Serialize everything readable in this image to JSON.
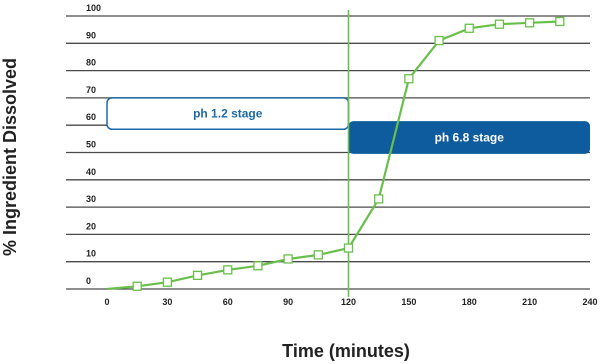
{
  "chart_data": {
    "type": "line",
    "title": "",
    "xlabel": "Time (minutes)",
    "ylabel": "% Ingredient Dissolved",
    "xlim": [
      0,
      240
    ],
    "ylim": [
      0,
      100
    ],
    "x_ticks": [
      0,
      30,
      60,
      90,
      120,
      150,
      180,
      210,
      240
    ],
    "y_ticks": [
      0,
      10,
      20,
      30,
      40,
      50,
      60,
      70,
      80,
      90,
      100
    ],
    "grid": "horizontal",
    "series": [
      {
        "x": [
          0,
          15,
          30,
          45,
          60,
          75,
          90,
          105,
          120,
          135,
          150,
          165,
          180,
          195,
          210,
          225
        ],
        "y": [
          0,
          1,
          2.5,
          5,
          7,
          8.5,
          11,
          12.5,
          15,
          33,
          77,
          91,
          95.5,
          97,
          97.5,
          98
        ],
        "color": "#6abf4b",
        "marker": "open-square"
      }
    ],
    "annotations": {
      "stage_divider_x": 120,
      "stage1": {
        "label": "ph 1.2 stage",
        "x_start": 0,
        "x_end": 120,
        "y_low": 58.5,
        "y_high": 70,
        "style": "outlined",
        "color": "#1d6aa8"
      },
      "stage2": {
        "label": "ph 6.8 stage",
        "x_start": 120,
        "x_end": 240,
        "y_low": 49.5,
        "y_high": 61.5,
        "style": "filled",
        "color": "#0e5b9e"
      }
    }
  }
}
